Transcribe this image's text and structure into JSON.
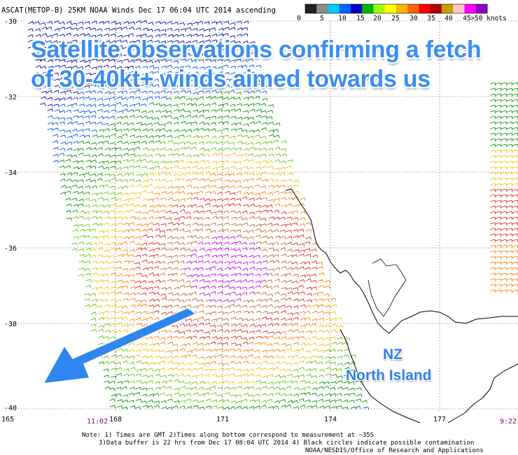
{
  "header": {
    "title": "ASCAT(METOP-B) 25KM NOAA Winds Dec 17 06:04 UTC 2014 ascending"
  },
  "colorbar": {
    "colors": [
      "#202020",
      "#8c8c8c",
      "#00c8ff",
      "#0064ff",
      "#0000c8",
      "#00b400",
      "#a0ff00",
      "#ffff00",
      "#ffb400",
      "#ff6400",
      "#ff0000",
      "#b40000",
      "#c8a000",
      "#ffc8c8",
      "#ff00ff",
      "#8c00c8"
    ],
    "labels": [
      "0",
      "5",
      "10",
      "15",
      "20",
      "25",
      "30",
      "35",
      "40",
      "45",
      ">50 knots"
    ]
  },
  "axes": {
    "lat_labels": [
      "-30",
      "-32",
      "-34",
      "-36",
      "-38",
      "-40"
    ],
    "lon_labels": [
      "165",
      "168",
      "171",
      "174",
      "177"
    ],
    "time_start": "11:02",
    "time_end": "9:22"
  },
  "overlay": {
    "headline_line1": "Satellite observations confirming a fetch",
    "headline_line2": "of 30-40kt+ winds aimed towards us",
    "nz_label": "NZ",
    "island_label": "North Island",
    "arrow_color": "#2f86ee"
  },
  "notes": {
    "line1": "Note: 1) Times are GMT 2)Times along bottom correspond to measurement at ~35S",
    "line2": "3)Data buffer is 22 hrs from Dec 17 08:04 UTC 2014 4) Black circles indicate possible contamination",
    "line3": "NOAA/NESDIS/Office of Research and Applications"
  }
}
